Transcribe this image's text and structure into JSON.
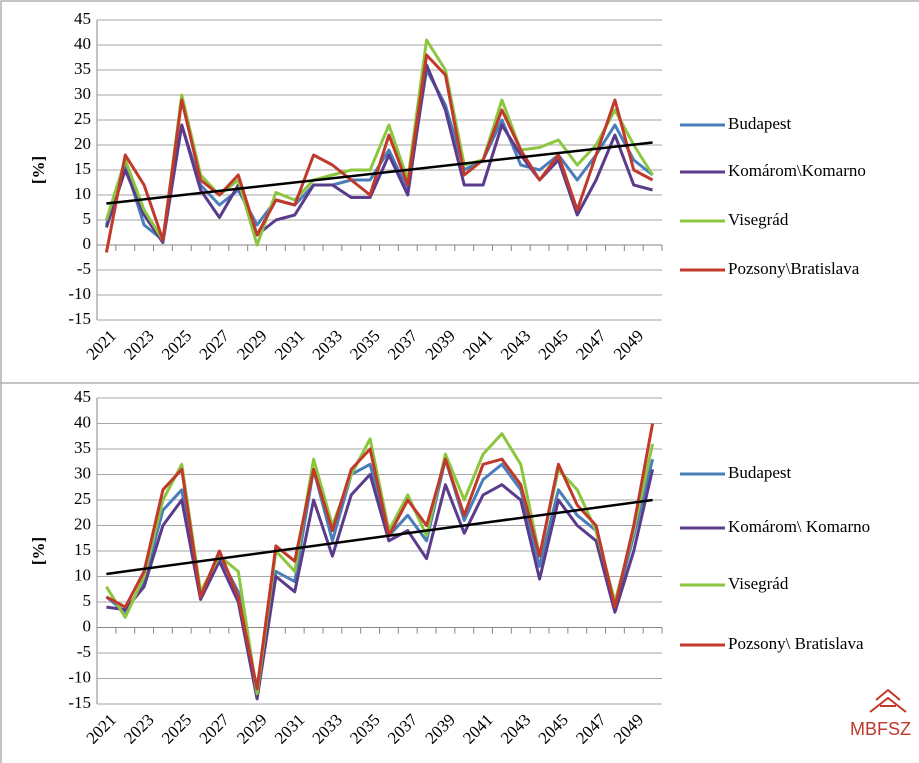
{
  "chart_data": [
    {
      "type": "line",
      "y_label": "[%]",
      "categories": [
        "2021",
        null,
        "2023",
        null,
        "2025",
        null,
        "2027",
        null,
        "2029",
        null,
        "2031",
        null,
        "2033",
        null,
        "2035",
        null,
        "2037",
        null,
        "2039",
        null,
        "2041",
        null,
        "2043",
        null,
        "2045",
        null,
        "2047",
        null,
        "2049",
        null
      ],
      "ylim": [
        -15,
        45
      ],
      "yticks": [
        -15,
        -10,
        -5,
        0,
        5,
        10,
        15,
        20,
        25,
        30,
        35,
        40,
        45
      ],
      "grid": true,
      "series": [
        {
          "name": "Budapest",
          "color": "#4a7ebb",
          "values": [
            4,
            16,
            4,
            1,
            24,
            12,
            8,
            11,
            4,
            9,
            8,
            12,
            12,
            13,
            13,
            19,
            11,
            35,
            28,
            15,
            17,
            25,
            16,
            15,
            18,
            13,
            18,
            24,
            17,
            14
          ]
        },
        {
          "name": "Komárom\\Komarno",
          "color": "#5b3b8c",
          "values": [
            3.5,
            15,
            6,
            0.5,
            24,
            11,
            5.5,
            12,
            2,
            5,
            6,
            12,
            12,
            9.5,
            9.5,
            18,
            10,
            36,
            27,
            12,
            12,
            24,
            18,
            13,
            17,
            6,
            13,
            22,
            12,
            11
          ]
        },
        {
          "name": "Visegrád",
          "color": "#8cc63f",
          "values": [
            5,
            17,
            7,
            1,
            30,
            14,
            10,
            13,
            0,
            10.5,
            9,
            13,
            14,
            15,
            15,
            24,
            13,
            41,
            35,
            16,
            17,
            29,
            19,
            19.5,
            21,
            16,
            20,
            27,
            20,
            14
          ]
        },
        {
          "name": "Pozsony\\Bratislava",
          "color": "#c0392b",
          "values": [
            -1.5,
            18,
            12,
            1,
            29,
            13,
            10,
            14,
            2,
            9,
            8,
            18,
            16,
            13,
            10,
            22,
            12,
            38,
            34,
            14,
            17,
            27,
            19,
            13,
            18,
            7,
            18,
            29,
            15,
            13
          ]
        }
      ],
      "trendline": {
        "color": "#000000",
        "x": [
          0,
          29
        ],
        "values": [
          8.3,
          20.5
        ]
      }
    },
    {
      "type": "line",
      "y_label": "[%]",
      "categories": [
        "2021",
        null,
        "2023",
        null,
        "2025",
        null,
        "2027",
        null,
        "2029",
        null,
        "2031",
        null,
        "2033",
        null,
        "2035",
        null,
        "2037",
        null,
        "2039",
        null,
        "2041",
        null,
        "2043",
        null,
        "2045",
        null,
        "2047",
        null,
        "2049",
        null
      ],
      "ylim": [
        -15,
        45
      ],
      "yticks": [
        -15,
        -10,
        -5,
        0,
        5,
        10,
        15,
        20,
        25,
        30,
        35,
        40,
        45
      ],
      "grid": true,
      "series": [
        {
          "name": "Budapest",
          "color": "#4a7ebb",
          "values": [
            6,
            3,
            9,
            23,
            27,
            6,
            14,
            7,
            -13,
            11,
            9,
            31,
            17,
            30,
            32,
            18,
            22,
            17,
            33,
            21,
            29,
            32,
            27,
            12,
            27,
            22,
            19,
            4,
            18,
            33
          ]
        },
        {
          "name": "Komárom\\ Komarno",
          "color": "#5b3b8c",
          "values": [
            4,
            3.5,
            8,
            20,
            25,
            5.5,
            13,
            5,
            -14,
            10,
            7,
            25,
            14,
            26,
            30,
            17,
            19,
            13.5,
            28,
            18.5,
            26,
            28,
            25,
            9.5,
            25,
            20,
            17,
            3,
            15,
            31
          ]
        },
        {
          "name": "Visegrád",
          "color": "#8cc63f",
          "values": [
            8,
            2,
            10,
            25,
            32,
            7,
            14,
            11,
            -13,
            15,
            11,
            33,
            20,
            30,
            37,
            19,
            26,
            18,
            34,
            25,
            34,
            38,
            32,
            14,
            31,
            27,
            19,
            5,
            19,
            36
          ]
        },
        {
          "name": "Pozsony\\ Bratislava",
          "color": "#c0392b",
          "values": [
            6,
            4,
            11,
            27,
            31,
            6,
            15,
            6,
            -12,
            16,
            13,
            31,
            19,
            31,
            35,
            18,
            25,
            20,
            33,
            22,
            32,
            33,
            28,
            14,
            32,
            24,
            20,
            4,
            20,
            40
          ]
        }
      ],
      "trendline": {
        "color": "#000000",
        "x": [
          0,
          29
        ],
        "values": [
          10.5,
          25
        ]
      }
    }
  ],
  "logo": "MBFSZ"
}
